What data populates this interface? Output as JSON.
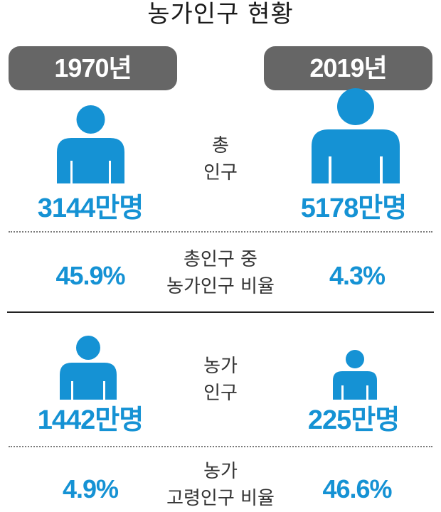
{
  "title": "농가인구 현황",
  "years": {
    "left": "1970년",
    "right": "2019년"
  },
  "rows": {
    "total_population": {
      "label_line1": "총",
      "label_line2": "인구",
      "left_value": "3144만명",
      "right_value": "5178만명"
    },
    "farm_ratio": {
      "label_line1": "총인구 중",
      "label_line2": "농가인구 비율",
      "left_value": "45.9%",
      "right_value": "4.3%"
    },
    "farm_population": {
      "label_line1": "농가",
      "label_line2": "인구",
      "left_value": "1442만명",
      "right_value": "225만명"
    },
    "farm_elderly_ratio": {
      "label_line1": "농가",
      "label_line2": "고령인구 비율",
      "left_value": "4.9%",
      "right_value": "46.6%"
    }
  },
  "colors": {
    "accent": "#1592d4",
    "tab_bg": "#666666",
    "text": "#333333"
  },
  "icons": {
    "person": "person-icon"
  }
}
